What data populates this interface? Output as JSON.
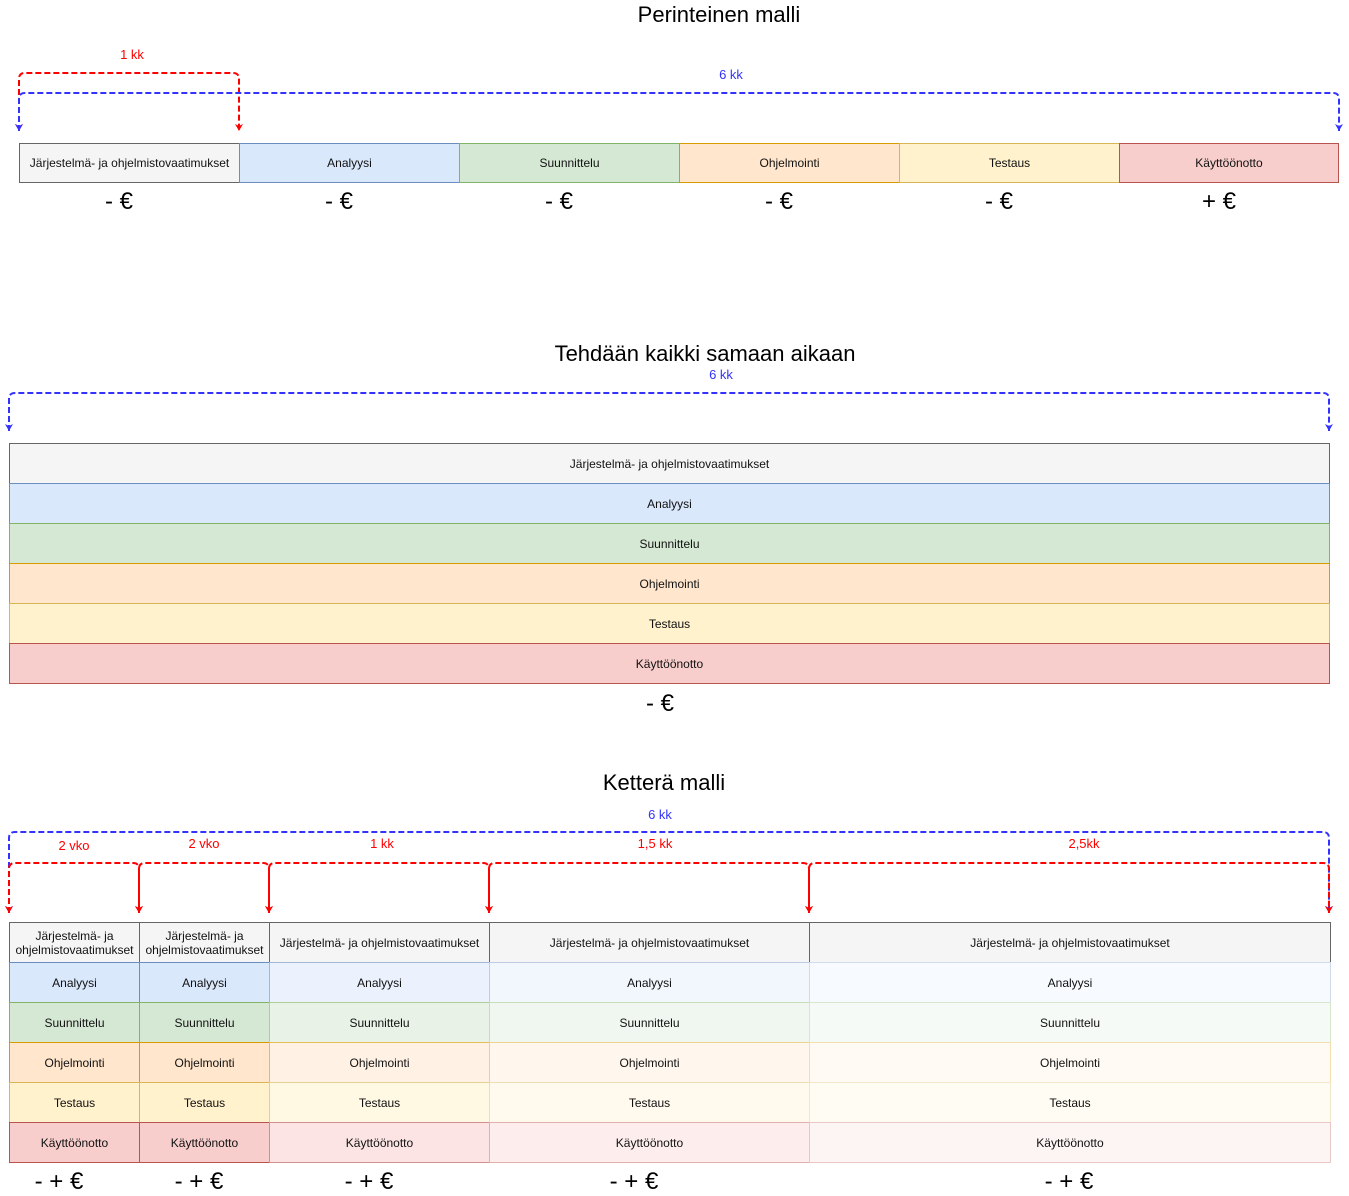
{
  "section1": {
    "title": "Perinteinen malli",
    "dur_red": "1 kk",
    "dur_blue": "6 kk",
    "phases": [
      {
        "label": "Järjestelmä- ja ohjelmistovaatimukset",
        "money": "- €"
      },
      {
        "label": "Analyysi",
        "money": "- €"
      },
      {
        "label": "Suunnittelu",
        "money": "- €"
      },
      {
        "label": "Ohjelmointi",
        "money": "- €"
      },
      {
        "label": "Testaus",
        "money": "- €"
      },
      {
        "label": "Käyttöönotto",
        "money": "+ €"
      }
    ]
  },
  "section2": {
    "title": "Tehdään kaikki samaan aikaan",
    "dur_blue": "6 kk",
    "phases": [
      "Järjestelmä- ja ohjelmistovaatimukset",
      "Analyysi",
      "Suunnittelu",
      "Ohjelmointi",
      "Testaus",
      "Käyttöönotto"
    ],
    "money": "- €"
  },
  "section3": {
    "title": "Ketterä malli",
    "dur_blue": "6 kk",
    "iterations": [
      {
        "duration": "2 vko",
        "money": "- + €",
        "phases": [
          "Järjestelmä- ja ohjelmistovaatimukset",
          "Analyysi",
          "Suunnittelu",
          "Ohjelmointi",
          "Testaus",
          "Käyttöönotto"
        ]
      },
      {
        "duration": "2 vko",
        "money": "- + €",
        "phases": [
          "Järjestelmä- ja ohjelmistovaatimukset",
          "Analyysi",
          "Suunnittelu",
          "Ohjelmointi",
          "Testaus",
          "Käyttöönotto"
        ]
      },
      {
        "duration": "1 kk",
        "money": "- + €",
        "phases": [
          "Järjestelmä- ja ohjelmistovaatimukset",
          "Analyysi",
          "Suunnittelu",
          "Ohjelmointi",
          "Testaus",
          "Käyttöönotto"
        ]
      },
      {
        "duration": "1,5 kk",
        "money": "- + €",
        "phases": [
          "Järjestelmä- ja ohjelmistovaatimukset",
          "Analyysi",
          "Suunnittelu",
          "Ohjelmointi",
          "Testaus",
          "Käyttöönotto"
        ]
      },
      {
        "duration": "2,5kk",
        "money": "- + €",
        "phases": [
          "Järjestelmä- ja ohjelmistovaatimukset",
          "Analyysi",
          "Suunnittelu",
          "Ohjelmointi",
          "Testaus",
          "Käyttöönotto"
        ]
      }
    ]
  },
  "colors": {
    "fills": [
      "#f5f5f5",
      "#dae8fc",
      "#d5e8d4",
      "#ffe6cc",
      "#fff2cc",
      "#f8cecc"
    ],
    "strokes": [
      "#666666",
      "#6c8ebf",
      "#82b366",
      "#d79b00",
      "#d6b656",
      "#b85450"
    ],
    "red_arrow": "#ff0000",
    "blue_arrow": "#3333ff"
  }
}
